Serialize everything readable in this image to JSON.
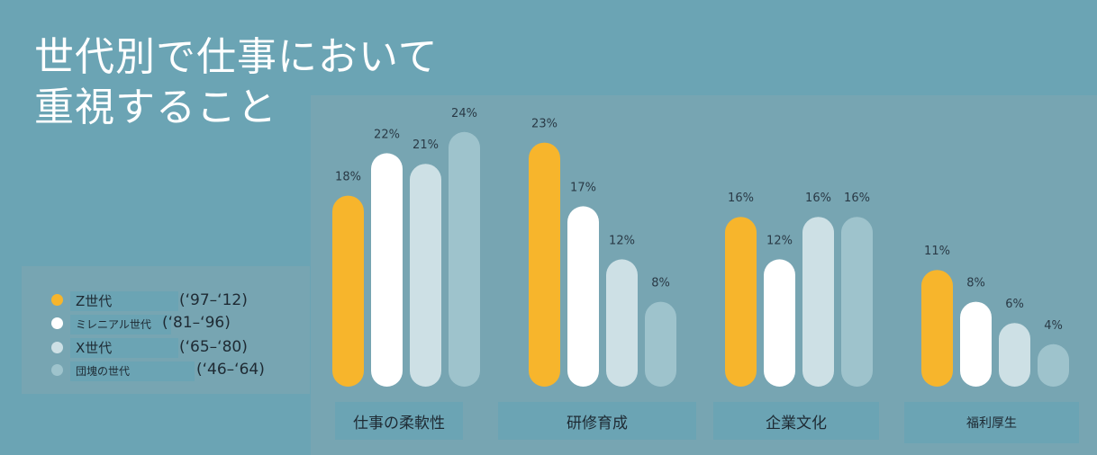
{
  "title_lines": [
    "世代別で仕事において",
    "重視すること"
  ],
  "colors": {
    "background": "#6ba4b4",
    "panel": "#77a5b2",
    "series": [
      "#f7b52c",
      "#ffffff",
      "#cde0e5",
      "#9ec3cc"
    ]
  },
  "legend": [
    {
      "name": "Z世代",
      "years": "(‘97–‘12)"
    },
    {
      "name": "ミレニアル世代",
      "years": "(‘81–‘96)"
    },
    {
      "name": "X世代",
      "years": "(‘65–‘80)"
    },
    {
      "name": "団塊の世代",
      "years": "(‘46–‘64)"
    }
  ],
  "chart_data": {
    "type": "bar",
    "categories": [
      "仕事の柔軟性",
      "研修育成",
      "企業文化",
      "福利厚生"
    ],
    "series": [
      {
        "name": "Z世代",
        "values": [
          18,
          23,
          16,
          11
        ]
      },
      {
        "name": "ミレニアル世代",
        "values": [
          22,
          17,
          12,
          8
        ]
      },
      {
        "name": "X世代",
        "values": [
          21,
          12,
          16,
          6
        ]
      },
      {
        "name": "団塊の世代",
        "values": [
          24,
          8,
          16,
          4
        ]
      }
    ],
    "value_labels": [
      [
        "18%",
        "22%",
        "21%",
        "24%"
      ],
      [
        "23%",
        "17%",
        "12%",
        "8%"
      ],
      [
        "16%",
        "12%",
        "16%",
        "16%"
      ],
      [
        "11%",
        "8%",
        "6%",
        "4%"
      ]
    ],
    "unit": "%",
    "ylim": [
      0,
      24
    ],
    "grid": false,
    "legend_position": "left"
  }
}
